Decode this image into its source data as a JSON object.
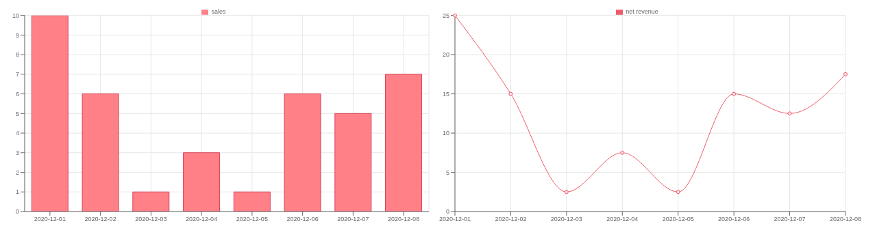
{
  "chart_data": [
    {
      "type": "bar",
      "categories": [
        "2020-12-01",
        "2020-12-02",
        "2020-12-03",
        "2020-12-04",
        "2020-12-05",
        "2020-12-06",
        "2020-12-07",
        "2020-12-08"
      ],
      "series": [
        {
          "name": "sales",
          "color": "#ff8087",
          "values": [
            10,
            6,
            1,
            3,
            1,
            6,
            5,
            7
          ]
        }
      ],
      "ylim": [
        0,
        10
      ],
      "yticks": [
        0,
        1,
        2,
        3,
        4,
        5,
        6,
        7,
        8,
        9,
        10
      ],
      "grid": true,
      "legend": "top"
    },
    {
      "type": "line",
      "categories": [
        "2020-12-01",
        "2020-12-02",
        "2020-12-03",
        "2020-12-04",
        "2020-12-05",
        "2020-12-06",
        "2020-12-07",
        "2020-12-08"
      ],
      "series": [
        {
          "name": "net revenue",
          "color": "#ef5a6a",
          "values": [
            25,
            15,
            2.5,
            7.5,
            2.5,
            15,
            12.5,
            17.5
          ]
        }
      ],
      "ylim": [
        0,
        25
      ],
      "yticks": [
        0,
        5,
        10,
        15,
        20,
        25
      ],
      "grid": true,
      "legend": "top",
      "marker": "circle"
    }
  ]
}
